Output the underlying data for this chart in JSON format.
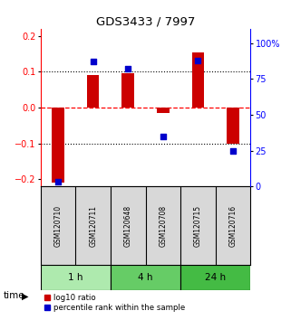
{
  "title": "GDS3433 / 7997",
  "samples": [
    "GSM120710",
    "GSM120711",
    "GSM120648",
    "GSM120708",
    "GSM120715",
    "GSM120716"
  ],
  "log10_ratio": [
    -0.21,
    0.09,
    0.095,
    -0.015,
    0.155,
    -0.1
  ],
  "percentile_rank": [
    3,
    87,
    82,
    35,
    88,
    25
  ],
  "groups": [
    {
      "label": "1 h",
      "indices": [
        0,
        1
      ],
      "color": "#aeeaae"
    },
    {
      "label": "4 h",
      "indices": [
        2,
        3
      ],
      "color": "#66cc66"
    },
    {
      "label": "24 h",
      "indices": [
        4,
        5
      ],
      "color": "#44bb44"
    }
  ],
  "ylim_left": [
    -0.22,
    0.22
  ],
  "ylim_right": [
    0,
    110
  ],
  "yticks_left": [
    -0.2,
    -0.1,
    0,
    0.1,
    0.2
  ],
  "yticks_right": [
    0,
    25,
    50,
    75,
    100
  ],
  "ytick_labels_right": [
    "0",
    "25",
    "50",
    "75",
    "100%"
  ],
  "hlines": [
    0.1,
    0.0,
    -0.1
  ],
  "hline_styles": [
    "dotted",
    "dashed",
    "dotted"
  ],
  "hline_colors": [
    "black",
    "red",
    "black"
  ],
  "bar_color": "#cc0000",
  "dot_color": "#0000cc",
  "bar_width": 0.35,
  "dot_size": 18,
  "background_color": "#ffffff",
  "panel_bg": "#d8d8d8",
  "time_label": "time",
  "legend_entries": [
    "log10 ratio",
    "percentile rank within the sample"
  ]
}
